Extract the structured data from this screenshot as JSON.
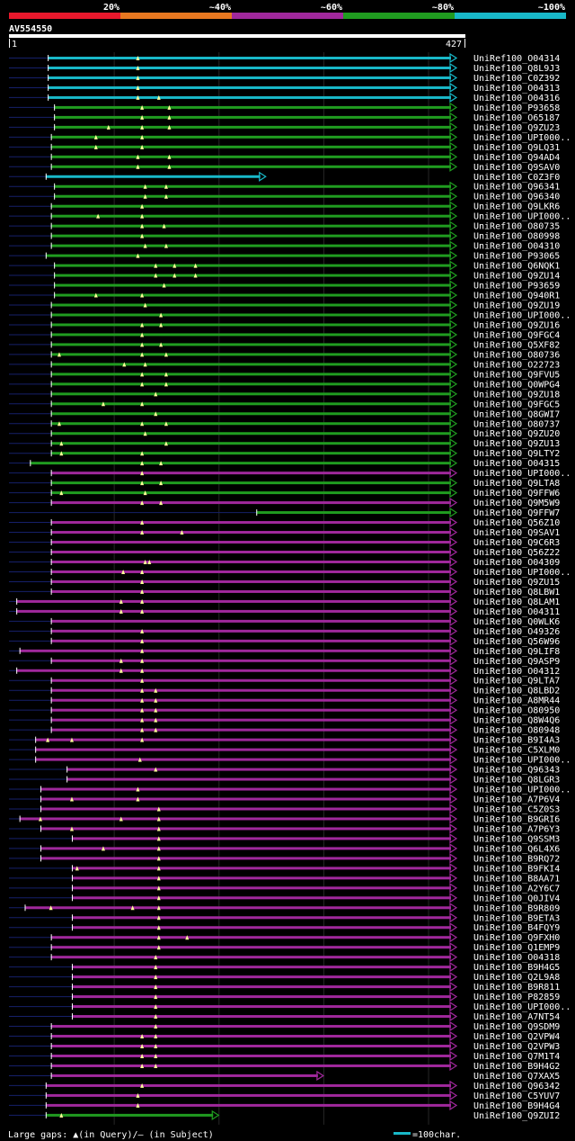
{
  "chart_data": {
    "type": "alignment-overview",
    "title": "AV554550",
    "scale_start_label": "1",
    "scale_end_label": "427",
    "query_length": 427,
    "legend_labels": [
      "20%",
      "~40%",
      "~60%",
      "~80%",
      "~100%"
    ],
    "legend_colors": [
      "#e8182c",
      "#e87820",
      "#a0289c",
      "#209c20",
      "#18b8c8"
    ],
    "footer": {
      "gaps_text": "Large gaps: ▲(in Query)/— (in Subject)",
      "scale_text": "=100char."
    },
    "hits": [
      {
        "name": "UniRef100_O04314",
        "start": 37,
        "end": 427,
        "cls": 4,
        "marks": [
          123
        ]
      },
      {
        "name": "UniRef100_Q8L9J3",
        "start": 37,
        "end": 427,
        "cls": 4,
        "marks": [
          123
        ]
      },
      {
        "name": "UniRef100_C0Z392",
        "start": 37,
        "end": 427,
        "cls": 4,
        "marks": [
          123
        ]
      },
      {
        "name": "UniRef100_O04313",
        "start": 37,
        "end": 427,
        "cls": 4,
        "marks": [
          123
        ]
      },
      {
        "name": "UniRef100_O04316",
        "start": 37,
        "end": 427,
        "cls": 4,
        "marks": [
          123,
          143
        ]
      },
      {
        "name": "UniRef100_P93658",
        "start": 43,
        "end": 427,
        "cls": 3,
        "marks": [
          127,
          153
        ]
      },
      {
        "name": "UniRef100_O65187",
        "start": 43,
        "end": 427,
        "cls": 3,
        "marks": [
          127,
          153
        ]
      },
      {
        "name": "UniRef100_Q9ZU23",
        "start": 43,
        "end": 427,
        "cls": 3,
        "marks": [
          95,
          127,
          153
        ]
      },
      {
        "name": "UniRef100_UPI000..",
        "start": 40,
        "end": 427,
        "cls": 3,
        "marks": [
          83,
          127
        ]
      },
      {
        "name": "UniRef100_Q9LQ31",
        "start": 40,
        "end": 427,
        "cls": 3,
        "marks": [
          83,
          127
        ]
      },
      {
        "name": "UniRef100_Q94AD4",
        "start": 40,
        "end": 427,
        "cls": 3,
        "marks": [
          123,
          153
        ]
      },
      {
        "name": "UniRef100_Q9SAV0",
        "start": 40,
        "end": 427,
        "cls": 3,
        "marks": [
          123,
          153
        ]
      },
      {
        "name": "UniRef100_C0Z3F0",
        "start": 35,
        "end": 245,
        "cls": 4,
        "marks": []
      },
      {
        "name": "UniRef100_Q96341",
        "start": 43,
        "end": 427,
        "cls": 3,
        "marks": [
          130,
          150
        ]
      },
      {
        "name": "UniRef100_Q96340",
        "start": 43,
        "end": 427,
        "cls": 3,
        "marks": [
          130,
          150
        ]
      },
      {
        "name": "UniRef100_Q9LKR6",
        "start": 40,
        "end": 427,
        "cls": 3,
        "marks": [
          127
        ]
      },
      {
        "name": "UniRef100_UPI000..",
        "start": 40,
        "end": 427,
        "cls": 3,
        "marks": [
          85,
          127
        ]
      },
      {
        "name": "UniRef100_O80735",
        "start": 40,
        "end": 427,
        "cls": 3,
        "marks": [
          127,
          148
        ]
      },
      {
        "name": "UniRef100_O80998",
        "start": 40,
        "end": 427,
        "cls": 3,
        "marks": [
          127
        ]
      },
      {
        "name": "UniRef100_O04310",
        "start": 40,
        "end": 427,
        "cls": 3,
        "marks": [
          130,
          150
        ]
      },
      {
        "name": "UniRef100_P93065",
        "start": 35,
        "end": 427,
        "cls": 3,
        "marks": [
          123
        ]
      },
      {
        "name": "UniRef100_Q6NQK1",
        "start": 43,
        "end": 427,
        "cls": 3,
        "marks": [
          140,
          158,
          178
        ]
      },
      {
        "name": "UniRef100_Q9ZU14",
        "start": 43,
        "end": 427,
        "cls": 3,
        "marks": [
          140,
          158,
          178
        ]
      },
      {
        "name": "UniRef100_P93659",
        "start": 43,
        "end": 427,
        "cls": 3,
        "marks": [
          148
        ]
      },
      {
        "name": "UniRef100_Q940R1",
        "start": 43,
        "end": 427,
        "cls": 3,
        "marks": [
          83,
          127
        ]
      },
      {
        "name": "UniRef100_Q9ZU19",
        "start": 40,
        "end": 427,
        "cls": 3,
        "marks": [
          130
        ]
      },
      {
        "name": "UniRef100_UPI000..",
        "start": 40,
        "end": 427,
        "cls": 3,
        "marks": [
          145
        ]
      },
      {
        "name": "UniRef100_Q9ZU16",
        "start": 40,
        "end": 427,
        "cls": 3,
        "marks": [
          127,
          145
        ]
      },
      {
        "name": "UniRef100_Q9FGC4",
        "start": 40,
        "end": 427,
        "cls": 3,
        "marks": [
          127
        ]
      },
      {
        "name": "UniRef100_Q5XF82",
        "start": 40,
        "end": 427,
        "cls": 3,
        "marks": [
          127,
          145
        ]
      },
      {
        "name": "UniRef100_O80736",
        "start": 40,
        "end": 427,
        "cls": 3,
        "marks": [
          48,
          127,
          150
        ]
      },
      {
        "name": "UniRef100_O22723",
        "start": 40,
        "end": 427,
        "cls": 3,
        "marks": [
          110,
          130
        ]
      },
      {
        "name": "UniRef100_Q9FVU5",
        "start": 40,
        "end": 427,
        "cls": 3,
        "marks": [
          127,
          150
        ]
      },
      {
        "name": "UniRef100_Q0WPG4",
        "start": 40,
        "end": 427,
        "cls": 3,
        "marks": [
          127,
          150
        ]
      },
      {
        "name": "UniRef100_Q9ZU18",
        "start": 40,
        "end": 427,
        "cls": 3,
        "marks": [
          140
        ]
      },
      {
        "name": "UniRef100_Q9FGC5",
        "start": 40,
        "end": 427,
        "cls": 3,
        "marks": [
          90,
          127
        ]
      },
      {
        "name": "UniRef100_Q8GWI7",
        "start": 40,
        "end": 427,
        "cls": 3,
        "marks": [
          140
        ]
      },
      {
        "name": "UniRef100_O80737",
        "start": 40,
        "end": 427,
        "cls": 3,
        "marks": [
          48,
          127,
          150
        ]
      },
      {
        "name": "UniRef100_Q9ZU20",
        "start": 40,
        "end": 427,
        "cls": 3,
        "marks": [
          130
        ]
      },
      {
        "name": "UniRef100_Q9ZU13",
        "start": 40,
        "end": 427,
        "cls": 3,
        "marks": [
          50,
          150
        ]
      },
      {
        "name": "UniRef100_Q9LTY2",
        "start": 40,
        "end": 427,
        "cls": 3,
        "marks": [
          50,
          127
        ]
      },
      {
        "name": "UniRef100_O04315",
        "start": 20,
        "end": 427,
        "cls": 3,
        "marks": [
          127,
          145
        ]
      },
      {
        "name": "UniRef100_UPI000..",
        "start": 40,
        "end": 427,
        "cls": 2,
        "marks": [
          127
        ]
      },
      {
        "name": "UniRef100_Q9LTA8",
        "start": 40,
        "end": 427,
        "cls": 3,
        "marks": [
          127,
          145
        ]
      },
      {
        "name": "UniRef100_Q9FFW6",
        "start": 40,
        "end": 427,
        "cls": 3,
        "marks": [
          50,
          130
        ]
      },
      {
        "name": "UniRef100_Q9M5W9",
        "start": 40,
        "end": 427,
        "cls": 2,
        "marks": [
          127,
          145
        ]
      },
      {
        "name": "UniRef100_Q9FFW7",
        "start": 236,
        "end": 427,
        "cls": 3,
        "marks": []
      },
      {
        "name": "UniRef100_Q56Z10",
        "start": 40,
        "end": 427,
        "cls": 2,
        "marks": [
          127
        ]
      },
      {
        "name": "UniRef100_Q9SAV1",
        "start": 40,
        "end": 427,
        "cls": 2,
        "marks": [
          127,
          165
        ]
      },
      {
        "name": "UniRef100_Q9C6R3",
        "start": 40,
        "end": 427,
        "cls": 2,
        "marks": []
      },
      {
        "name": "UniRef100_Q56Z22",
        "start": 40,
        "end": 427,
        "cls": 2,
        "marks": []
      },
      {
        "name": "UniRef100_O04309",
        "start": 40,
        "end": 427,
        "cls": 2,
        "marks": [
          130,
          134
        ]
      },
      {
        "name": "UniRef100_UPI000..",
        "start": 40,
        "end": 427,
        "cls": 2,
        "marks": [
          109,
          127
        ]
      },
      {
        "name": "UniRef100_Q9ZU15",
        "start": 40,
        "end": 427,
        "cls": 2,
        "marks": [
          127
        ]
      },
      {
        "name": "UniRef100_Q8LBW1",
        "start": 40,
        "end": 427,
        "cls": 2,
        "marks": [
          127
        ]
      },
      {
        "name": "UniRef100_Q8LAM1",
        "start": 7,
        "end": 427,
        "cls": 2,
        "marks": [
          107,
          127
        ]
      },
      {
        "name": "UniRef100_O04311",
        "start": 7,
        "end": 427,
        "cls": 2,
        "marks": [
          107,
          127
        ]
      },
      {
        "name": "UniRef100_Q0WLK6",
        "start": 40,
        "end": 427,
        "cls": 2,
        "marks": []
      },
      {
        "name": "UniRef100_O49326",
        "start": 40,
        "end": 427,
        "cls": 2,
        "marks": [
          127
        ]
      },
      {
        "name": "UniRef100_Q56W96",
        "start": 40,
        "end": 427,
        "cls": 2,
        "marks": [
          127
        ]
      },
      {
        "name": "UniRef100_Q9LIF8",
        "start": 10,
        "end": 427,
        "cls": 2,
        "marks": [
          127
        ]
      },
      {
        "name": "UniRef100_Q9ASP9",
        "start": 40,
        "end": 427,
        "cls": 2,
        "marks": [
          107,
          127
        ]
      },
      {
        "name": "UniRef100_O04312",
        "start": 7,
        "end": 427,
        "cls": 2,
        "marks": [
          107,
          127
        ]
      },
      {
        "name": "UniRef100_Q9LTA7",
        "start": 40,
        "end": 427,
        "cls": 2,
        "marks": [
          127
        ]
      },
      {
        "name": "UniRef100_Q8LBD2",
        "start": 40,
        "end": 427,
        "cls": 2,
        "marks": [
          127,
          140
        ]
      },
      {
        "name": "UniRef100_A8MR44",
        "start": 40,
        "end": 427,
        "cls": 2,
        "marks": [
          127,
          140
        ]
      },
      {
        "name": "UniRef100_O80950",
        "start": 40,
        "end": 427,
        "cls": 2,
        "marks": [
          127,
          140
        ]
      },
      {
        "name": "UniRef100_Q8W4Q6",
        "start": 40,
        "end": 427,
        "cls": 2,
        "marks": [
          127,
          140
        ]
      },
      {
        "name": "UniRef100_O80948",
        "start": 40,
        "end": 427,
        "cls": 2,
        "marks": [
          127,
          140
        ]
      },
      {
        "name": "UniRef100_B9I4A3",
        "start": 25,
        "end": 427,
        "cls": 2,
        "marks": [
          37,
          60,
          127
        ]
      },
      {
        "name": "UniRef100_C5XLM0",
        "start": 25,
        "end": 427,
        "cls": 2,
        "marks": []
      },
      {
        "name": "UniRef100_UPI000..",
        "start": 25,
        "end": 427,
        "cls": 2,
        "marks": [
          125
        ]
      },
      {
        "name": "UniRef100_Q96343",
        "start": 55,
        "end": 427,
        "cls": 2,
        "marks": [
          140
        ]
      },
      {
        "name": "UniRef100_Q8LGR3",
        "start": 55,
        "end": 427,
        "cls": 2,
        "marks": []
      },
      {
        "name": "UniRef100_UPI000..",
        "start": 30,
        "end": 427,
        "cls": 2,
        "marks": [
          123
        ]
      },
      {
        "name": "UniRef100_A7P6V4",
        "start": 30,
        "end": 427,
        "cls": 2,
        "marks": [
          60,
          123
        ]
      },
      {
        "name": "UniRef100_C5Z0S3",
        "start": 30,
        "end": 427,
        "cls": 2,
        "marks": [
          143
        ]
      },
      {
        "name": "UniRef100_B9GRI6",
        "start": 10,
        "end": 427,
        "cls": 2,
        "marks": [
          30,
          107,
          143
        ]
      },
      {
        "name": "UniRef100_A7P6Y3",
        "start": 30,
        "end": 427,
        "cls": 2,
        "marks": [
          60,
          143
        ]
      },
      {
        "name": "UniRef100_Q9SSM3",
        "start": 60,
        "end": 427,
        "cls": 2,
        "marks": [
          143
        ]
      },
      {
        "name": "UniRef100_Q6L4X6",
        "start": 30,
        "end": 427,
        "cls": 2,
        "marks": [
          90,
          143
        ]
      },
      {
        "name": "UniRef100_B9RQ72",
        "start": 30,
        "end": 427,
        "cls": 2,
        "marks": [
          143
        ]
      },
      {
        "name": "UniRef100_B9FKI4",
        "start": 60,
        "end": 427,
        "cls": 2,
        "marks": [
          65,
          143
        ]
      },
      {
        "name": "UniRef100_B8AA71",
        "start": 60,
        "end": 427,
        "cls": 2,
        "marks": [
          143
        ]
      },
      {
        "name": "UniRef100_A2Y6C7",
        "start": 60,
        "end": 427,
        "cls": 2,
        "marks": [
          143
        ]
      },
      {
        "name": "UniRef100_Q0JIV4",
        "start": 60,
        "end": 427,
        "cls": 2,
        "marks": [
          143
        ]
      },
      {
        "name": "UniRef100_B9R809",
        "start": 15,
        "end": 427,
        "cls": 2,
        "marks": [
          40,
          118,
          143
        ]
      },
      {
        "name": "UniRef100_B9ETA3",
        "start": 60,
        "end": 427,
        "cls": 2,
        "marks": [
          143
        ]
      },
      {
        "name": "UniRef100_B4FQY9",
        "start": 60,
        "end": 427,
        "cls": 2,
        "marks": [
          143
        ]
      },
      {
        "name": "UniRef100_Q9FXH0",
        "start": 40,
        "end": 427,
        "cls": 2,
        "marks": [
          143,
          170
        ]
      },
      {
        "name": "UniRef100_Q1EMP9",
        "start": 40,
        "end": 427,
        "cls": 2,
        "marks": [
          143
        ]
      },
      {
        "name": "UniRef100_O04318",
        "start": 40,
        "end": 427,
        "cls": 2,
        "marks": [
          140
        ]
      },
      {
        "name": "UniRef100_B9H4G5",
        "start": 60,
        "end": 427,
        "cls": 2,
        "marks": [
          140
        ]
      },
      {
        "name": "UniRef100_Q2L9A8",
        "start": 60,
        "end": 427,
        "cls": 2,
        "marks": [
          140
        ]
      },
      {
        "name": "UniRef100_B9R811",
        "start": 60,
        "end": 427,
        "cls": 2,
        "marks": [
          140
        ]
      },
      {
        "name": "UniRef100_P82859",
        "start": 60,
        "end": 427,
        "cls": 2,
        "marks": [
          140
        ]
      },
      {
        "name": "UniRef100_UPI000..",
        "start": 60,
        "end": 427,
        "cls": 2,
        "marks": [
          140
        ]
      },
      {
        "name": "UniRef100_A7NT54",
        "start": 60,
        "end": 427,
        "cls": 2,
        "marks": [
          140
        ]
      },
      {
        "name": "UniRef100_Q9SDM9",
        "start": 40,
        "end": 427,
        "cls": 2,
        "marks": [
          140
        ]
      },
      {
        "name": "UniRef100_Q2VPW4",
        "start": 40,
        "end": 427,
        "cls": 2,
        "marks": [
          127,
          140
        ]
      },
      {
        "name": "UniRef100_Q2VPW3",
        "start": 40,
        "end": 427,
        "cls": 2,
        "marks": [
          127,
          140
        ]
      },
      {
        "name": "UniRef100_Q7M1T4",
        "start": 40,
        "end": 427,
        "cls": 2,
        "marks": [
          127,
          140
        ]
      },
      {
        "name": "UniRef100_B9H4G2",
        "start": 40,
        "end": 427,
        "cls": 2,
        "marks": [
          127,
          140
        ]
      },
      {
        "name": "UniRef100_Q7XAX5",
        "start": 40,
        "end": 300,
        "cls": 2,
        "marks": []
      },
      {
        "name": "UniRef100_Q96342",
        "start": 35,
        "end": 427,
        "cls": 2,
        "marks": [
          127
        ]
      },
      {
        "name": "UniRef100_C5YUV7",
        "start": 35,
        "end": 427,
        "cls": 2,
        "marks": [
          123
        ]
      },
      {
        "name": "UniRef100_B9H4G4",
        "start": 35,
        "end": 427,
        "cls": 2,
        "marks": [
          123
        ]
      },
      {
        "name": "UniRef100_Q9ZUI2",
        "start": 35,
        "end": 200,
        "cls": 3,
        "marks": [
          50
        ]
      }
    ]
  }
}
